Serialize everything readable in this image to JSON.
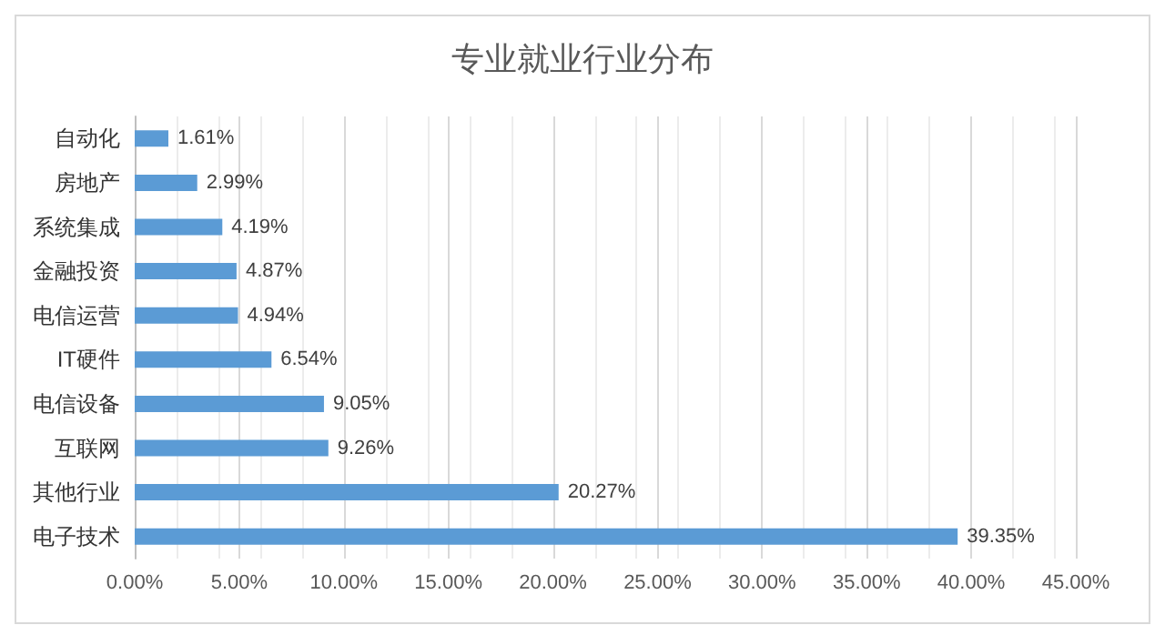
{
  "chart_data": {
    "type": "bar",
    "orientation": "horizontal",
    "title": "专业就业行业分布",
    "categories": [
      "自动化",
      "房地产",
      "系统集成",
      "金融投资",
      "电信运营",
      "IT硬件",
      "电信设备",
      "互联网",
      "其他行业",
      "电子技术"
    ],
    "values": [
      1.61,
      2.99,
      4.19,
      4.87,
      4.94,
      6.54,
      9.05,
      9.26,
      20.27,
      39.35
    ],
    "value_labels": [
      "1.61%",
      "2.99%",
      "4.19%",
      "4.87%",
      "4.94%",
      "6.54%",
      "9.05%",
      "9.26%",
      "20.27%",
      "39.35%"
    ],
    "color": "#5b9bd5",
    "xlim": [
      0,
      45
    ],
    "xticks": [
      {
        "value": 0,
        "label": "0.00%"
      },
      {
        "value": 5,
        "label": "5.00%"
      },
      {
        "value": 10,
        "label": "10.00%"
      },
      {
        "value": 15,
        "label": "15.00%"
      },
      {
        "value": 20,
        "label": "20.00%"
      },
      {
        "value": 25,
        "label": "25.00%"
      },
      {
        "value": 30,
        "label": "30.00%"
      },
      {
        "value": 35,
        "label": "35.00%"
      },
      {
        "value": 40,
        "label": "40.00%"
      },
      {
        "value": 45,
        "label": "45.00%"
      }
    ],
    "grid": "x"
  }
}
